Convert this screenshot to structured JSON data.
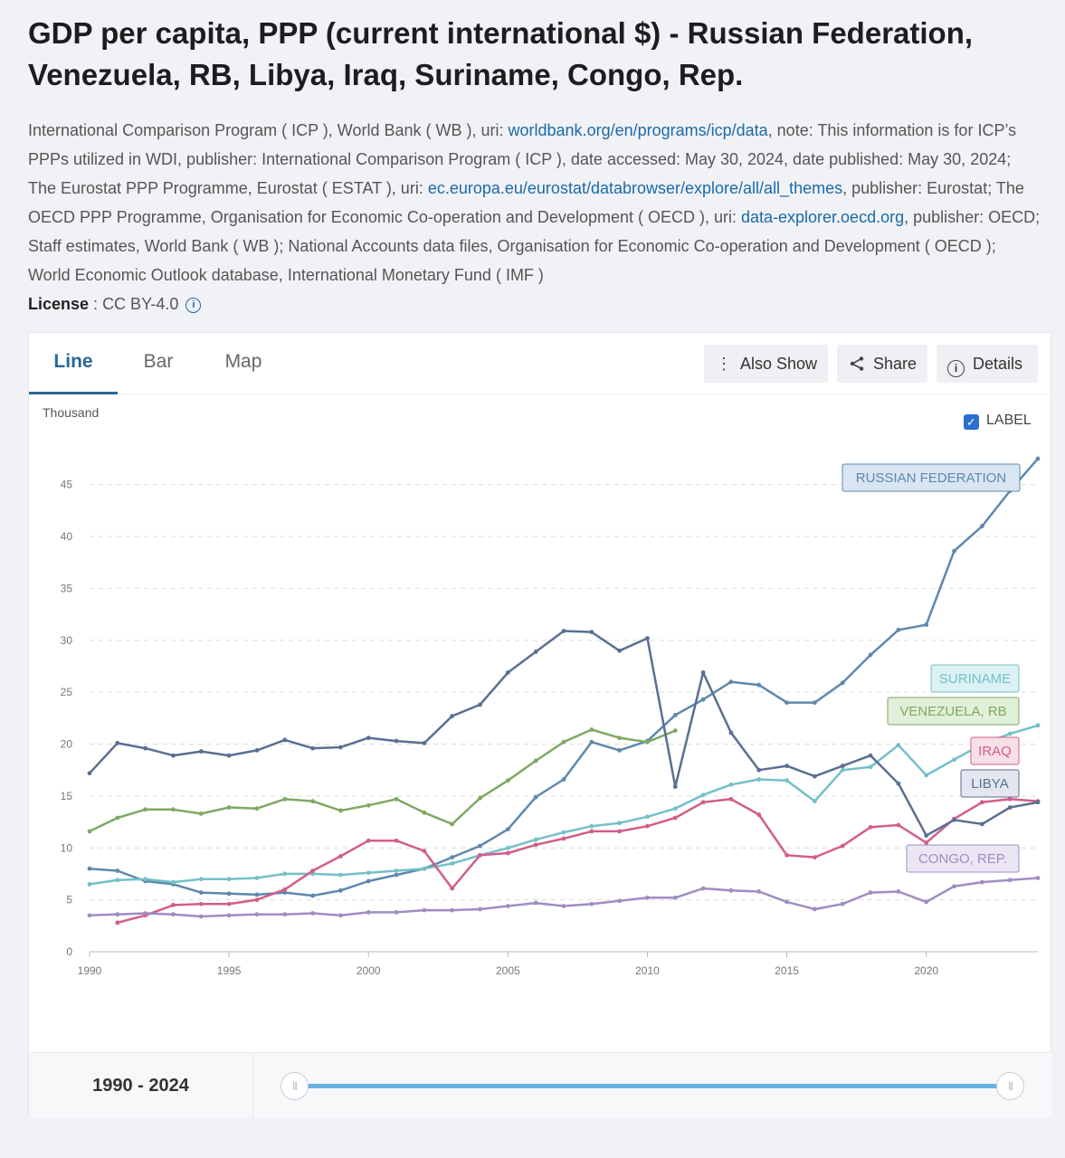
{
  "title": "GDP per capita, PPP (current international $) - Russian Federation, Venezuela, RB, Libya, Iraq, Suriname, Congo, Rep.",
  "source": {
    "p1": "International Comparison Program ( ICP ), World Bank ( WB ), uri: ",
    "link1": "worldbank.org/en/programs/icp/data",
    "p2": ", note: This information is for ICP’s PPPs utilized in WDI, publisher: International Comparison Program ( ICP ), date accessed: May 30, 2024, date published: May 30, 2024; The Eurostat PPP Programme, Eurostat ( ESTAT ), uri: ",
    "link2": "ec.europa.eu/eurostat/databrowser/explore/all/all_themes",
    "p3": ", publisher: Eurostat; The OECD PPP Programme, Organisation for Economic Co-operation and Development ( OECD ), uri: ",
    "link3": "data-explorer.oecd.org",
    "p4": ", publisher: OECD; Staff estimates, World Bank ( WB ); National Accounts data files, Organisation for Economic Co-operation and Development ( OECD ); World Economic Outlook database, International Monetary Fund ( IMF )"
  },
  "license": {
    "label": "License",
    "sep": " : ",
    "value": "CC BY-4.0",
    "icon": "info-icon"
  },
  "tabs": [
    {
      "label": "Line",
      "active": true
    },
    {
      "label": "Bar"
    },
    {
      "label": "Map"
    }
  ],
  "toolbar": {
    "also_show": "Also Show",
    "also_show_icon": "vertical-ellipsis-icon",
    "share": "Share",
    "share_icon": "share-icon",
    "details": "Details",
    "details_icon": "info-circle-icon"
  },
  "label_toggle": {
    "label": "LABEL",
    "checked": true
  },
  "range": {
    "label": "1990 - 2024"
  },
  "chart_data": {
    "type": "line",
    "unit_label": "Thousand",
    "xlim": [
      1990,
      2024
    ],
    "ylim": [
      0,
      47.5
    ],
    "x_ticks": [
      1990,
      1995,
      2000,
      2005,
      2010,
      2015,
      2020
    ],
    "y_ticks": [
      0,
      5,
      10,
      15,
      20,
      25,
      30,
      35,
      40,
      45
    ],
    "grid": "horizontal dashed",
    "series": [
      {
        "name": "RUSSIAN FEDERATION",
        "color": "#5e88ae",
        "label_bg": "#d9e6f2",
        "x": [
          1990,
          1991,
          1992,
          1993,
          1994,
          1995,
          1996,
          1997,
          1998,
          1999,
          2000,
          2001,
          2002,
          2003,
          2004,
          2005,
          2006,
          2007,
          2008,
          2009,
          2010,
          2011,
          2012,
          2013,
          2014,
          2015,
          2016,
          2017,
          2018,
          2019,
          2020,
          2021,
          2022,
          2023,
          2024
        ],
        "y": [
          8.0,
          7.8,
          6.8,
          6.5,
          5.7,
          5.6,
          5.5,
          5.7,
          5.4,
          5.9,
          6.8,
          7.4,
          8.0,
          9.1,
          10.2,
          11.8,
          14.9,
          16.6,
          20.2,
          19.4,
          20.3,
          22.8,
          24.3,
          26.0,
          25.7,
          24.0,
          24.0,
          25.9,
          28.6,
          31.0,
          31.5,
          38.6,
          41.0,
          44.4,
          47.5
        ]
      },
      {
        "name": "SURINAME",
        "color": "#74c0c7",
        "label_bg": "#dcf1f3",
        "x": [
          1990,
          1991,
          1992,
          1993,
          1994,
          1995,
          1996,
          1997,
          1998,
          1999,
          2000,
          2001,
          2002,
          2003,
          2004,
          2005,
          2006,
          2007,
          2008,
          2009,
          2010,
          2011,
          2012,
          2013,
          2014,
          2015,
          2016,
          2017,
          2018,
          2019,
          2020,
          2021,
          2022,
          2023,
          2024
        ],
        "y": [
          6.5,
          6.9,
          7.0,
          6.7,
          7.0,
          7.0,
          7.1,
          7.5,
          7.5,
          7.4,
          7.6,
          7.8,
          8.0,
          8.5,
          9.3,
          10.0,
          10.8,
          11.5,
          12.1,
          12.4,
          13.0,
          13.8,
          15.1,
          16.1,
          16.6,
          16.5,
          14.5,
          17.5,
          17.8,
          19.9,
          17.0,
          18.5,
          20.0,
          21.0,
          21.8
        ]
      },
      {
        "name": "VENEZUELA, RB",
        "color": "#7ea963",
        "label_bg": "#e2efd9",
        "x": [
          1990,
          1991,
          1992,
          1993,
          1994,
          1995,
          1996,
          1997,
          1998,
          1999,
          2000,
          2001,
          2002,
          2003,
          2004,
          2005,
          2006,
          2007,
          2008,
          2009,
          2010,
          2011
        ],
        "y": [
          11.6,
          12.9,
          13.7,
          13.7,
          13.3,
          13.9,
          13.8,
          14.7,
          14.5,
          13.6,
          14.1,
          14.7,
          13.4,
          12.3,
          14.8,
          16.5,
          18.4,
          20.2,
          21.4,
          20.6,
          20.2,
          21.3
        ]
      },
      {
        "name": "IRAQ",
        "color": "#d25d8b",
        "label_bg": "#f7dfe8",
        "x": [
          1991,
          1992,
          1993,
          1994,
          1995,
          1996,
          1997,
          1998,
          1999,
          2000,
          2001,
          2002,
          2003,
          2004,
          2005,
          2006,
          2007,
          2008,
          2009,
          2010,
          2011,
          2012,
          2013,
          2014,
          2015,
          2016,
          2017,
          2018,
          2019,
          2020,
          2021,
          2022,
          2023,
          2024
        ],
        "y": [
          2.8,
          3.5,
          4.5,
          4.6,
          4.6,
          5.0,
          6.0,
          7.8,
          9.2,
          10.7,
          10.7,
          9.7,
          6.1,
          9.3,
          9.5,
          10.3,
          10.9,
          11.6,
          11.6,
          12.1,
          12.9,
          14.4,
          14.7,
          13.2,
          9.3,
          9.1,
          10.2,
          12.0,
          12.2,
          10.5,
          12.8,
          14.4,
          14.7,
          14.5
        ]
      },
      {
        "name": "LIBYA",
        "color": "#5a6f92",
        "label_bg": "#e4e7f0",
        "x": [
          1990,
          1991,
          1992,
          1993,
          1994,
          1995,
          1996,
          1997,
          1998,
          1999,
          2000,
          2001,
          2002,
          2003,
          2004,
          2005,
          2006,
          2007,
          2008,
          2009,
          2010,
          2011,
          2012,
          2013,
          2014,
          2015,
          2016,
          2017,
          2018,
          2019,
          2020,
          2021,
          2022,
          2023,
          2024
        ],
        "y": [
          17.2,
          20.1,
          19.6,
          18.9,
          19.3,
          18.9,
          19.4,
          20.4,
          19.6,
          19.7,
          20.6,
          20.3,
          20.1,
          22.7,
          23.8,
          26.9,
          28.9,
          30.9,
          30.8,
          29.0,
          30.2,
          15.9,
          26.9,
          21.1,
          17.5,
          17.9,
          16.9,
          17.9,
          18.9,
          16.2,
          11.2,
          12.7,
          12.3,
          13.9,
          14.4
        ]
      },
      {
        "name": "CONGO, REP.",
        "color": "#9f8cc4",
        "label_bg": "#ebe6f4",
        "x": [
          1990,
          1991,
          1992,
          1993,
          1994,
          1995,
          1996,
          1997,
          1998,
          1999,
          2000,
          2001,
          2002,
          2003,
          2004,
          2005,
          2006,
          2007,
          2008,
          2009,
          2010,
          2011,
          2012,
          2013,
          2014,
          2015,
          2016,
          2017,
          2018,
          2019,
          2020,
          2021,
          2022,
          2023,
          2024
        ],
        "y": [
          3.5,
          3.6,
          3.7,
          3.6,
          3.4,
          3.5,
          3.6,
          3.6,
          3.7,
          3.5,
          3.8,
          3.8,
          4.0,
          4.0,
          4.1,
          4.4,
          4.7,
          4.4,
          4.6,
          4.9,
          5.2,
          5.2,
          6.1,
          5.9,
          5.8,
          4.8,
          4.1,
          4.6,
          5.7,
          5.8,
          4.8,
          6.3,
          6.7,
          6.9,
          7.1
        ]
      }
    ]
  }
}
